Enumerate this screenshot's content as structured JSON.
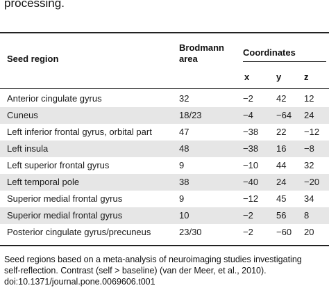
{
  "caption_top": "processing.",
  "table": {
    "headers": {
      "seed_region": "Seed region",
      "brodmann_line1": "Brodmann",
      "brodmann_line2": "area",
      "coordinates": "Coordinates",
      "x": "x",
      "y": "y",
      "z": "z"
    },
    "rows": [
      {
        "region": "Anterior cingulate gyrus",
        "ba": "32",
        "x": "−2",
        "y": "42",
        "z": "12"
      },
      {
        "region": "Cuneus",
        "ba": "18/23",
        "x": "−4",
        "y": "−64",
        "z": "24"
      },
      {
        "region": "Left inferior frontal gyrus, orbital part",
        "ba": "47",
        "x": "−38",
        "y": "22",
        "z": "−12"
      },
      {
        "region": "Left insula",
        "ba": "48",
        "x": "−38",
        "y": "16",
        "z": "−8"
      },
      {
        "region": "Left superior frontal gyrus",
        "ba": "9",
        "x": "−10",
        "y": "44",
        "z": "32"
      },
      {
        "region": "Left temporal pole",
        "ba": "38",
        "x": "−40",
        "y": "24",
        "z": "−20"
      },
      {
        "region": "Superior medial frontal gyrus",
        "ba": "9",
        "x": "−12",
        "y": "45",
        "z": "34"
      },
      {
        "region": "Superior medial frontal gyrus",
        "ba": "10",
        "x": "−2",
        "y": "56",
        "z": "8"
      },
      {
        "region": "Posterior cingulate gyrus/precuneus",
        "ba": "23/30",
        "x": "−2",
        "y": "−60",
        "z": "20"
      }
    ]
  },
  "footnote": {
    "line1": "Seed regions based on a meta-analysis of neuroimaging studies investigating",
    "line2": "self-reflection. Contrast (self > baseline) (van der Meer, et al., 2010).",
    "doi": "doi:10.1371/journal.pone.0069606.t001"
  }
}
